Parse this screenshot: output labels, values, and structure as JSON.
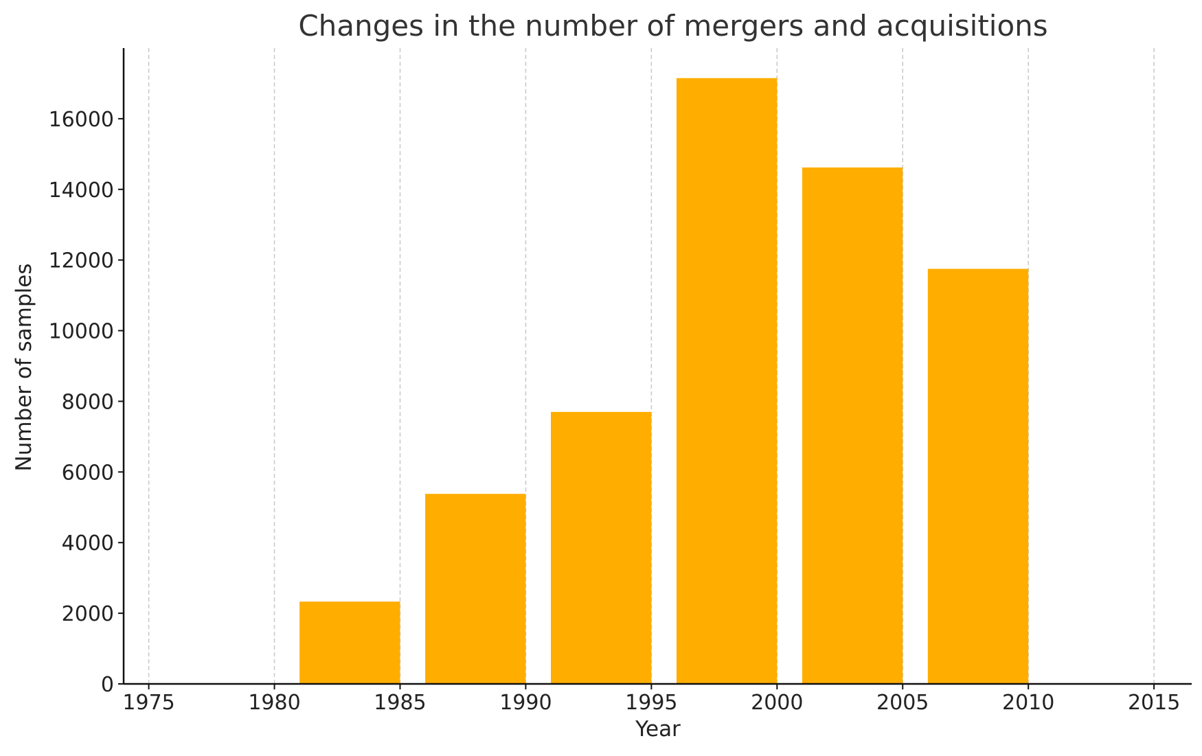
{
  "chart_data": {
    "type": "bar",
    "title": "Changes in the number of mergers and acquisitions",
    "xlabel": "Year",
    "ylabel": "Number of samples",
    "xlim": [
      1974,
      2016.5
    ],
    "ylim": [
      0,
      18000
    ],
    "xticks": [
      1975,
      1980,
      1985,
      1990,
      1995,
      2000,
      2005,
      2010,
      2015
    ],
    "yticks": [
      0,
      2000,
      4000,
      6000,
      8000,
      10000,
      12000,
      14000,
      16000
    ],
    "grid": "vertical dashed",
    "bar_color": "#FFAE00",
    "bars": [
      {
        "start": 1981,
        "end": 1985,
        "value": 2330
      },
      {
        "start": 1986,
        "end": 1990,
        "value": 5380
      },
      {
        "start": 1991,
        "end": 1995,
        "value": 7700
      },
      {
        "start": 1996,
        "end": 2000,
        "value": 17150
      },
      {
        "start": 2001,
        "end": 2005,
        "value": 14620
      },
      {
        "start": 2006,
        "end": 2010,
        "value": 11750
      }
    ]
  }
}
